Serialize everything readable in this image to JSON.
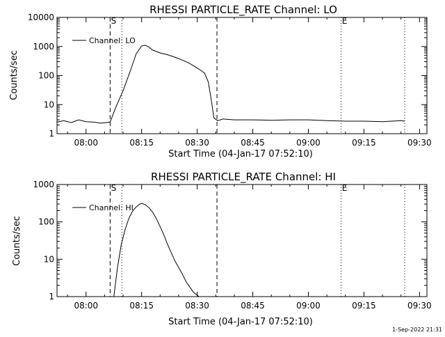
{
  "footer": {
    "timestamp": "1-Sep-2022 21:31"
  },
  "chart_data": [
    {
      "type": "line",
      "title": "RHESSI PARTICLE_RATE Channel: LO",
      "xlabel": "Start Time (04-Jan-17 07:52:10)",
      "ylabel": "Counts/sec",
      "y_scale": "log",
      "xlim": [
        "07:52:10",
        "09:32:00"
      ],
      "ylim": [
        1,
        10000
      ],
      "x_ticks": [
        "08:00",
        "08:15",
        "08:30",
        "08:45",
        "09:00",
        "09:15",
        "09:30"
      ],
      "y_ticks": [
        "1",
        "10",
        "100",
        "1000",
        "10000"
      ],
      "legend": {
        "position": "top-left",
        "entries": [
          "Channel: LO"
        ]
      },
      "markers": [
        {
          "label": "S",
          "time": "08:06:30",
          "style": "dashed"
        },
        {
          "label": "",
          "time": "08:09:40",
          "style": "dotted"
        },
        {
          "label": "",
          "time": "08:35:20",
          "style": "dashed"
        },
        {
          "label": "E",
          "time": "09:08:50",
          "style": "dotted"
        },
        {
          "label": "",
          "time": "09:26:00",
          "style": "dotted"
        }
      ],
      "series": [
        {
          "x": [
            "07:52:10",
            "07:54:00",
            "07:56:00",
            "07:58:00",
            "08:00:00",
            "08:02:00",
            "08:04:00",
            "08:06:30",
            "08:08:00",
            "08:10:00",
            "08:12:00",
            "08:13:30",
            "08:15:00",
            "08:16:00",
            "08:17:00",
            "08:18:00",
            "08:20:00",
            "08:22:00",
            "08:24:00",
            "08:26:00",
            "08:28:00",
            "08:30:00",
            "08:31:00",
            "08:32:00",
            "08:33:00",
            "08:34:00",
            "08:34:30",
            "08:35:30",
            "08:37:00",
            "08:40:00",
            "08:45:00",
            "08:50:00",
            "08:55:00",
            "09:00:00",
            "09:05:00",
            "09:10:00",
            "09:15:00",
            "09:20:00",
            "09:25:00",
            "09:26:00"
          ],
          "y": [
            2.5,
            2.8,
            2.4,
            3,
            2.6,
            2.5,
            2.3,
            2.5,
            8,
            30,
            150,
            550,
            1050,
            1100,
            950,
            750,
            600,
            520,
            430,
            340,
            260,
            180,
            150,
            120,
            60,
            10,
            3.5,
            2.8,
            3.2,
            3,
            3,
            2.9,
            3,
            3,
            2.8,
            2.7,
            2.7,
            2.6,
            2.8,
            2.7
          ]
        }
      ]
    },
    {
      "type": "line",
      "title": "RHESSI PARTICLE_RATE Channel: HI",
      "xlabel": "Start Time (04-Jan-17 07:52:10)",
      "ylabel": "Counts/sec",
      "y_scale": "log",
      "xlim": [
        "07:52:10",
        "09:32:00"
      ],
      "ylim": [
        1,
        1000
      ],
      "x_ticks": [
        "08:00",
        "08:15",
        "08:30",
        "08:45",
        "09:00",
        "09:15",
        "09:30"
      ],
      "y_ticks": [
        "1",
        "10",
        "100",
        "1000"
      ],
      "legend": {
        "position": "top-left",
        "entries": [
          "Channel: HI"
        ]
      },
      "markers": [
        {
          "label": "S",
          "time": "08:06:30",
          "style": "dashed"
        },
        {
          "label": "",
          "time": "08:09:40",
          "style": "dotted"
        },
        {
          "label": "",
          "time": "08:35:20",
          "style": "dashed"
        },
        {
          "label": "E",
          "time": "09:08:50",
          "style": "dotted"
        },
        {
          "label": "",
          "time": "09:26:00",
          "style": "dotted"
        }
      ],
      "series": [
        {
          "x": [
            "08:07:30",
            "08:08:30",
            "08:09:30",
            "08:10:30",
            "08:11:30",
            "08:12:30",
            "08:13:30",
            "08:14:30",
            "08:15:00",
            "08:16:00",
            "08:17:00",
            "08:18:00",
            "08:19:00",
            "08:20:00",
            "08:21:00",
            "08:22:00",
            "08:23:00",
            "08:24:00",
            "08:25:00",
            "08:26:00",
            "08:27:00",
            "08:28:00",
            "08:29:00",
            "08:30:30"
          ],
          "y": [
            1,
            6,
            25,
            60,
            120,
            190,
            250,
            300,
            310,
            290,
            240,
            180,
            120,
            75,
            45,
            25,
            15,
            9,
            6,
            4,
            2.5,
            1.8,
            1.3,
            1
          ]
        }
      ]
    }
  ]
}
